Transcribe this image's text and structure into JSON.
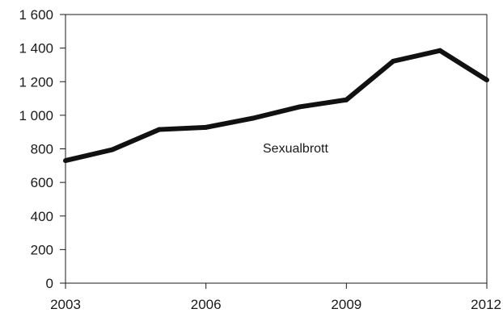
{
  "chart_data": {
    "type": "line",
    "x": [
      2003,
      2004,
      2005,
      2006,
      2007,
      2008,
      2009,
      2010,
      2011,
      2012
    ],
    "series": [
      {
        "name": "Sexualbrott",
        "values": [
          730,
          795,
          915,
          928,
          982,
          1050,
          1092,
          1322,
          1385,
          1210
        ],
        "color": "#111111"
      }
    ],
    "xlim": [
      2003,
      2012
    ],
    "ylim": [
      0,
      1600
    ],
    "x_ticks": [
      2003,
      2006,
      2009,
      2012
    ],
    "x_tick_labels": [
      "2003",
      "2006",
      "2009",
      "2012"
    ],
    "y_ticks": [
      0,
      200,
      400,
      600,
      800,
      1000,
      1200,
      1400,
      1600
    ],
    "y_tick_labels": [
      "0",
      "200",
      "400",
      "600",
      "800",
      "1 000",
      "1 200",
      "1 400",
      "1 600"
    ],
    "grid": false,
    "legend": "inline-label",
    "title": "",
    "xlabel": "",
    "ylabel": ""
  }
}
